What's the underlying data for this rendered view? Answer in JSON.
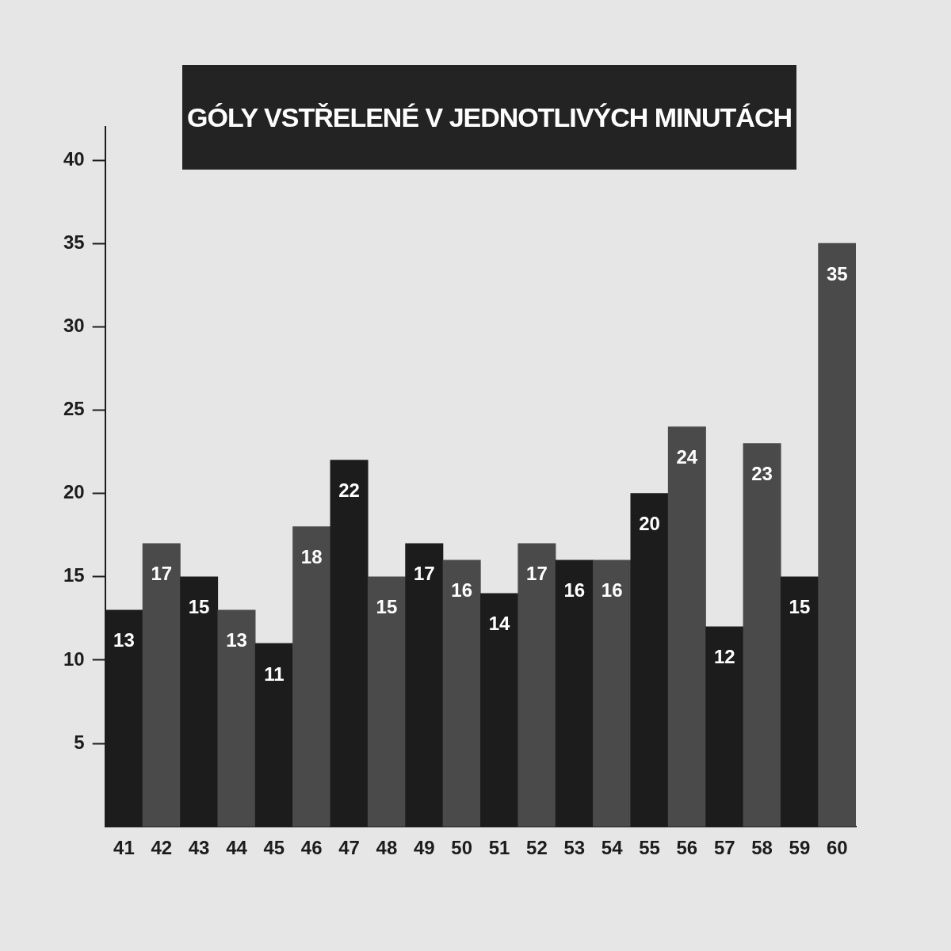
{
  "chart_data": {
    "type": "bar",
    "title": "GÓLY VSTŘELENÉ V JEDNOTLIVÝCH MINUTÁCH",
    "categories": [
      "41",
      "42",
      "43",
      "44",
      "45",
      "46",
      "47",
      "48",
      "49",
      "50",
      "51",
      "52",
      "53",
      "54",
      "55",
      "56",
      "57",
      "58",
      "59",
      "60"
    ],
    "values": [
      13,
      17,
      15,
      13,
      11,
      18,
      22,
      15,
      17,
      16,
      14,
      17,
      16,
      16,
      20,
      24,
      12,
      23,
      15,
      35
    ],
    "colors": [
      "#1c1c1c",
      "#4a4a4a",
      "#1c1c1c",
      "#4a4a4a",
      "#1c1c1c",
      "#4a4a4a",
      "#1c1c1c",
      "#4a4a4a",
      "#1c1c1c",
      "#4a4a4a",
      "#1c1c1c",
      "#4a4a4a",
      "#1c1c1c",
      "#4a4a4a",
      "#1c1c1c",
      "#4a4a4a",
      "#1c1c1c",
      "#4a4a4a",
      "#1c1c1c",
      "#4a4a4a"
    ],
    "ylim": [
      0,
      42
    ],
    "yticks": [
      5,
      10,
      15,
      20,
      25,
      30,
      35,
      40
    ],
    "grid": false,
    "legend": false,
    "data_labels": true
  }
}
